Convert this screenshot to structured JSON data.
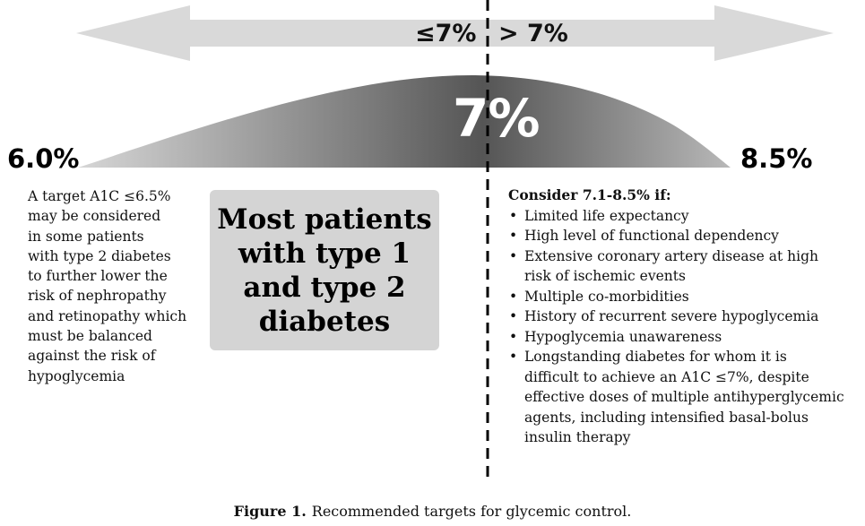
{
  "arrow": {
    "left_label": "≤7%",
    "right_label": "> 7%"
  },
  "curve": {
    "left_end_label": "6.0%",
    "right_end_label": "8.5%",
    "center_label": "7%"
  },
  "left_note": {
    "lines": [
      "A target A1C ≤6.5%",
      "may be considered",
      "in some patients",
      "with type 2 diabetes",
      "to further lower the",
      "risk of nephropathy",
      "and retinopathy which",
      "must be balanced",
      "against the risk of",
      "hypoglycemia"
    ]
  },
  "center_box": {
    "lines": [
      "Most patients",
      "with type 1",
      "and type 2",
      "diabetes"
    ]
  },
  "consider": {
    "title": "Consider 7.1-8.5% if:",
    "items": [
      {
        "lines": [
          "Limited life expectancy"
        ]
      },
      {
        "lines": [
          "High level of functional dependency"
        ]
      },
      {
        "lines": [
          "Extensive coronary artery disease at high",
          "risk of ischemic events"
        ]
      },
      {
        "lines": [
          "Multiple co-morbidities"
        ]
      },
      {
        "lines": [
          "History of recurrent severe hypoglycemia"
        ]
      },
      {
        "lines": [
          "Hypoglycemia unawareness"
        ]
      },
      {
        "lines": [
          "Longstanding diabetes for whom it is",
          "difficult to achieve an A1C ≤7%, despite",
          "effective doses of multiple antihyperglycemic",
          "agents, including intensified basal-bolus",
          "insulin therapy"
        ]
      }
    ]
  },
  "caption": {
    "label": "Figure 1.",
    "text": "Recommended targets for glycemic control."
  },
  "colors": {
    "arrow": "#d9d9d9",
    "curve_light": "#d6d6d6",
    "curve_dark": "#555555",
    "box": "#d4d4d4"
  }
}
